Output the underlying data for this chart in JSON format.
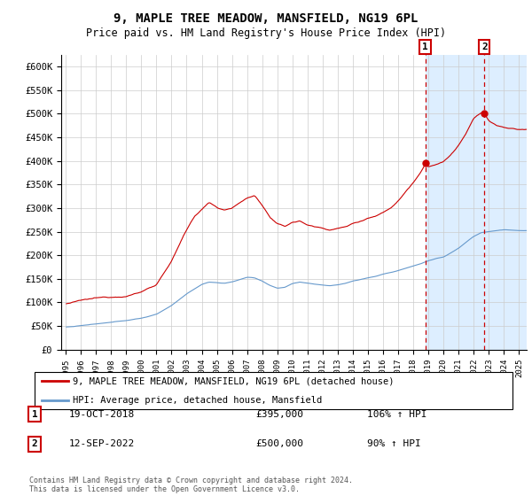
{
  "title": "9, MAPLE TREE MEADOW, MANSFIELD, NG19 6PL",
  "subtitle": "Price paid vs. HM Land Registry's House Price Index (HPI)",
  "ylabel_ticks": [
    0,
    50000,
    100000,
    150000,
    200000,
    250000,
    300000,
    350000,
    400000,
    450000,
    500000,
    550000,
    600000
  ],
  "ylabel_labels": [
    "£0",
    "£50K",
    "£100K",
    "£150K",
    "£200K",
    "£250K",
    "£300K",
    "£350K",
    "£400K",
    "£450K",
    "£500K",
    "£550K",
    "£600K"
  ],
  "xlim": [
    1994.7,
    2025.5
  ],
  "ylim": [
    0,
    625000
  ],
  "red_line_label": "9, MAPLE TREE MEADOW, MANSFIELD, NG19 6PL (detached house)",
  "blue_line_label": "HPI: Average price, detached house, Mansfield",
  "sale1_date": 2018.79,
  "sale1_price": 395000,
  "sale1_label": "1",
  "sale2_date": 2022.7,
  "sale2_price": 500000,
  "sale2_label": "2",
  "footer": "Contains HM Land Registry data © Crown copyright and database right 2024.\nThis data is licensed under the Open Government Licence v3.0.",
  "red_color": "#cc0000",
  "blue_color": "#6699cc",
  "grid_color": "#cccccc",
  "background_color": "#ffffff",
  "highlight_bg": "#ddeeff"
}
